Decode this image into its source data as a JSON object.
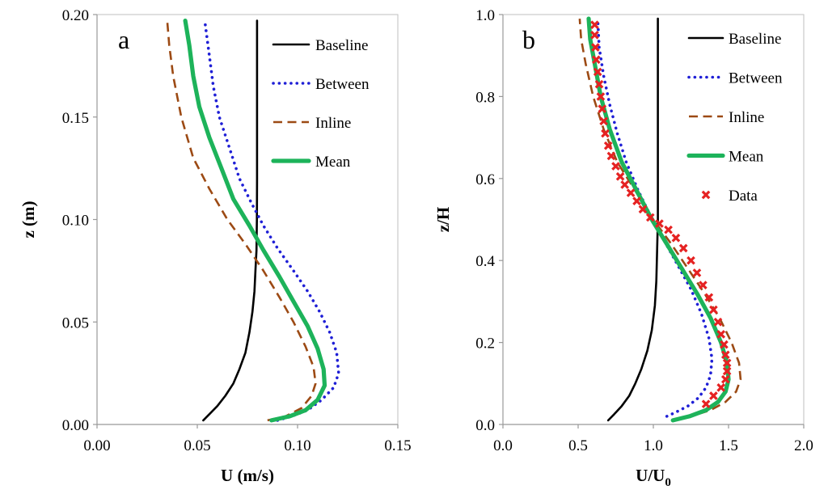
{
  "chart_data": [
    {
      "type": "line",
      "panel_label": "a",
      "xlabel": "U (m/s)",
      "ylabel": "z (m)",
      "xlim": [
        0,
        0.15
      ],
      "ylim": [
        0,
        0.2
      ],
      "xticks": [
        "0.00",
        "0.05",
        "0.10",
        "0.15"
      ],
      "yticks": [
        "0.00",
        "0.05",
        "0.10",
        "0.15",
        "0.20"
      ],
      "grid": false,
      "legend_position": "top-right",
      "series": [
        {
          "name": "Baseline",
          "style": "solid-thin",
          "color": "#000000",
          "points": [
            [
              0.053,
              0.002
            ],
            [
              0.056,
              0.005
            ],
            [
              0.06,
              0.009
            ],
            [
              0.064,
              0.014
            ],
            [
              0.068,
              0.02
            ],
            [
              0.071,
              0.027
            ],
            [
              0.074,
              0.035
            ],
            [
              0.076,
              0.045
            ],
            [
              0.0775,
              0.055
            ],
            [
              0.0785,
              0.065
            ],
            [
              0.079,
              0.075
            ],
            [
              0.0795,
              0.085
            ],
            [
              0.0797,
              0.1
            ],
            [
              0.0798,
              0.12
            ],
            [
              0.0798,
              0.15
            ],
            [
              0.0798,
              0.197
            ]
          ]
        },
        {
          "name": "Between",
          "style": "dotted",
          "color": "#1f1fd6",
          "points": [
            [
              0.09,
              0.002
            ],
            [
              0.097,
              0.004
            ],
            [
              0.105,
              0.007
            ],
            [
              0.112,
              0.012
            ],
            [
              0.118,
              0.018
            ],
            [
              0.1205,
              0.025
            ],
            [
              0.1195,
              0.035
            ],
            [
              0.116,
              0.045
            ],
            [
              0.111,
              0.055
            ],
            [
              0.105,
              0.065
            ],
            [
              0.098,
              0.075
            ],
            [
              0.09,
              0.086
            ],
            [
              0.083,
              0.097
            ],
            [
              0.077,
              0.108
            ],
            [
              0.071,
              0.12
            ],
            [
              0.066,
              0.135
            ],
            [
              0.061,
              0.15
            ],
            [
              0.058,
              0.165
            ],
            [
              0.056,
              0.18
            ],
            [
              0.054,
              0.195
            ]
          ]
        },
        {
          "name": "Inline",
          "style": "dashed",
          "color": "#9c4a14",
          "points": [
            [
              0.085,
              0.002
            ],
            [
              0.094,
              0.004
            ],
            [
              0.102,
              0.008
            ],
            [
              0.107,
              0.014
            ],
            [
              0.109,
              0.02
            ],
            [
              0.108,
              0.028
            ],
            [
              0.104,
              0.038
            ],
            [
              0.098,
              0.05
            ],
            [
              0.091,
              0.062
            ],
            [
              0.083,
              0.075
            ],
            [
              0.074,
              0.088
            ],
            [
              0.065,
              0.1
            ],
            [
              0.056,
              0.115
            ],
            [
              0.048,
              0.13
            ],
            [
              0.042,
              0.15
            ],
            [
              0.038,
              0.17
            ],
            [
              0.036,
              0.185
            ],
            [
              0.035,
              0.197
            ]
          ]
        },
        {
          "name": "Mean",
          "style": "solid-thick",
          "color": "#1db35a",
          "points": [
            [
              0.087,
              0.002
            ],
            [
              0.096,
              0.004
            ],
            [
              0.104,
              0.007
            ],
            [
              0.11,
              0.012
            ],
            [
              0.1135,
              0.019
            ],
            [
              0.113,
              0.027
            ],
            [
              0.11,
              0.037
            ],
            [
              0.105,
              0.048
            ],
            [
              0.098,
              0.06
            ],
            [
              0.091,
              0.072
            ],
            [
              0.083,
              0.085
            ],
            [
              0.076,
              0.097
            ],
            [
              0.068,
              0.11
            ],
            [
              0.062,
              0.125
            ],
            [
              0.056,
              0.14
            ],
            [
              0.051,
              0.155
            ],
            [
              0.048,
              0.17
            ],
            [
              0.046,
              0.185
            ],
            [
              0.044,
              0.197
            ]
          ]
        }
      ]
    },
    {
      "type": "line",
      "panel_label": "b",
      "xlabel": "U/U",
      "xlabel_subscript": "0",
      "ylabel": "z/H",
      "xlim": [
        0,
        2
      ],
      "ylim": [
        0,
        1
      ],
      "xticks": [
        "0.0",
        "0.5",
        "1.0",
        "1.5",
        "2.0"
      ],
      "yticks": [
        "0.0",
        "0.2",
        "0.4",
        "0.6",
        "0.8",
        "1.0"
      ],
      "grid": false,
      "legend_position": "top-right",
      "series": [
        {
          "name": "Baseline",
          "style": "solid-thin",
          "color": "#000000",
          "points": [
            [
              0.7,
              0.01
            ],
            [
              0.74,
              0.025
            ],
            [
              0.79,
              0.045
            ],
            [
              0.84,
              0.07
            ],
            [
              0.88,
              0.1
            ],
            [
              0.92,
              0.135
            ],
            [
              0.96,
              0.18
            ],
            [
              0.99,
              0.23
            ],
            [
              1.01,
              0.29
            ],
            [
              1.02,
              0.35
            ],
            [
              1.025,
              0.42
            ],
            [
              1.03,
              0.5
            ],
            [
              1.03,
              0.6
            ],
            [
              1.03,
              0.8
            ],
            [
              1.03,
              0.99
            ]
          ]
        },
        {
          "name": "Between",
          "style": "dotted",
          "color": "#1f1fd6",
          "points": [
            [
              1.09,
              0.02
            ],
            [
              1.15,
              0.03
            ],
            [
              1.23,
              0.045
            ],
            [
              1.3,
              0.065
            ],
            [
              1.35,
              0.09
            ],
            [
              1.38,
              0.12
            ],
            [
              1.39,
              0.16
            ],
            [
              1.37,
              0.21
            ],
            [
              1.32,
              0.27
            ],
            [
              1.25,
              0.33
            ],
            [
              1.16,
              0.39
            ],
            [
              1.07,
              0.45
            ],
            [
              0.98,
              0.51
            ],
            [
              0.9,
              0.57
            ],
            [
              0.82,
              0.64
            ],
            [
              0.76,
              0.71
            ],
            [
              0.71,
              0.78
            ],
            [
              0.67,
              0.85
            ],
            [
              0.64,
              0.92
            ],
            [
              0.63,
              0.99
            ]
          ]
        },
        {
          "name": "Inline",
          "style": "dashed",
          "color": "#9c4a14",
          "points": [
            [
              1.12,
              0.01
            ],
            [
              1.25,
              0.02
            ],
            [
              1.38,
              0.035
            ],
            [
              1.48,
              0.055
            ],
            [
              1.55,
              0.08
            ],
            [
              1.58,
              0.11
            ],
            [
              1.57,
              0.15
            ],
            [
              1.52,
              0.2
            ],
            [
              1.44,
              0.26
            ],
            [
              1.34,
              0.32
            ],
            [
              1.23,
              0.38
            ],
            [
              1.12,
              0.44
            ],
            [
              1.0,
              0.5
            ],
            [
              0.88,
              0.57
            ],
            [
              0.76,
              0.64
            ],
            [
              0.67,
              0.72
            ],
            [
              0.6,
              0.8
            ],
            [
              0.55,
              0.88
            ],
            [
              0.52,
              0.94
            ],
            [
              0.51,
              0.99
            ]
          ]
        },
        {
          "name": "Mean",
          "style": "solid-thick",
          "color": "#1db35a",
          "points": [
            [
              1.13,
              0.01
            ],
            [
              1.24,
              0.02
            ],
            [
              1.35,
              0.035
            ],
            [
              1.43,
              0.055
            ],
            [
              1.48,
              0.08
            ],
            [
              1.5,
              0.11
            ],
            [
              1.49,
              0.15
            ],
            [
              1.45,
              0.2
            ],
            [
              1.38,
              0.26
            ],
            [
              1.29,
              0.32
            ],
            [
              1.19,
              0.38
            ],
            [
              1.09,
              0.44
            ],
            [
              0.99,
              0.5
            ],
            [
              0.89,
              0.57
            ],
            [
              0.79,
              0.64
            ],
            [
              0.71,
              0.72
            ],
            [
              0.65,
              0.8
            ],
            [
              0.61,
              0.88
            ],
            [
              0.58,
              0.94
            ],
            [
              0.57,
              0.99
            ]
          ]
        },
        {
          "name": "Data",
          "style": "markers-x",
          "color": "#e52222",
          "points": [
            [
              1.35,
              0.05
            ],
            [
              1.4,
              0.07
            ],
            [
              1.45,
              0.09
            ],
            [
              1.48,
              0.11
            ],
            [
              1.49,
              0.13
            ],
            [
              1.49,
              0.15
            ],
            [
              1.48,
              0.17
            ],
            [
              1.47,
              0.195
            ],
            [
              1.45,
              0.22
            ],
            [
              1.43,
              0.25
            ],
            [
              1.4,
              0.28
            ],
            [
              1.37,
              0.31
            ],
            [
              1.33,
              0.34
            ],
            [
              1.29,
              0.37
            ],
            [
              1.25,
              0.4
            ],
            [
              1.2,
              0.43
            ],
            [
              1.15,
              0.455
            ],
            [
              1.1,
              0.475
            ],
            [
              1.04,
              0.49
            ],
            [
              0.98,
              0.505
            ],
            [
              0.93,
              0.525
            ],
            [
              0.89,
              0.545
            ],
            [
              0.85,
              0.565
            ],
            [
              0.81,
              0.585
            ],
            [
              0.78,
              0.605
            ],
            [
              0.75,
              0.63
            ],
            [
              0.72,
              0.655
            ],
            [
              0.7,
              0.68
            ],
            [
              0.68,
              0.71
            ],
            [
              0.67,
              0.74
            ],
            [
              0.66,
              0.77
            ],
            [
              0.65,
              0.8
            ],
            [
              0.64,
              0.83
            ],
            [
              0.63,
              0.86
            ],
            [
              0.62,
              0.89
            ],
            [
              0.615,
              0.92
            ],
            [
              0.61,
              0.95
            ],
            [
              0.61,
              0.975
            ]
          ]
        }
      ]
    }
  ]
}
